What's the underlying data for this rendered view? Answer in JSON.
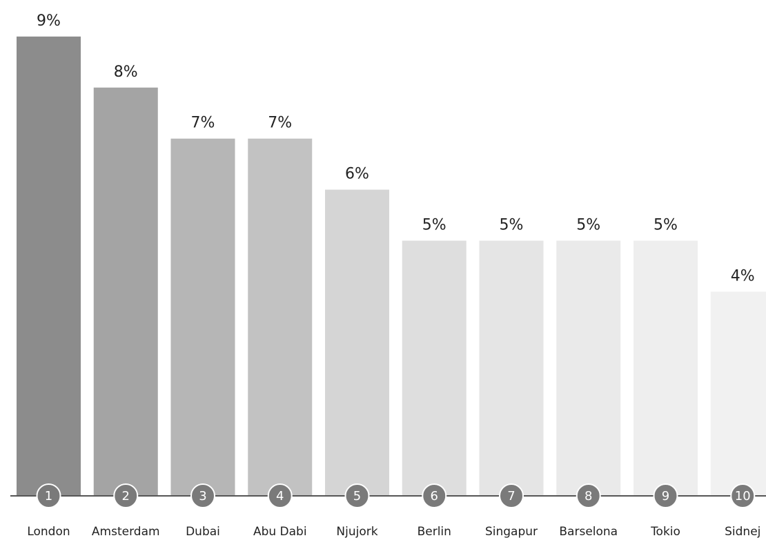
{
  "chart_data": {
    "type": "bar",
    "categories": [
      "London",
      "Amsterdam",
      "Dubai",
      "Abu Dabi",
      "Njujork",
      "Berlin",
      "Singapur",
      "Barselona",
      "Tokio",
      "Sidnej"
    ],
    "ranks": [
      1,
      2,
      3,
      4,
      5,
      6,
      7,
      8,
      9,
      10
    ],
    "values": [
      9,
      8,
      7,
      7,
      6,
      5,
      5,
      5,
      5,
      4
    ],
    "value_labels": [
      "9%",
      "8%",
      "7%",
      "7%",
      "6%",
      "5%",
      "5%",
      "5%",
      "5%",
      "4%"
    ],
    "colors": [
      "#8c8c8c",
      "#a4a4a4",
      "#b6b6b6",
      "#c2c2c2",
      "#d5d5d5",
      "#dedede",
      "#e5e5e5",
      "#eaeaea",
      "#eeeeee",
      "#f1f1f1"
    ]
  }
}
